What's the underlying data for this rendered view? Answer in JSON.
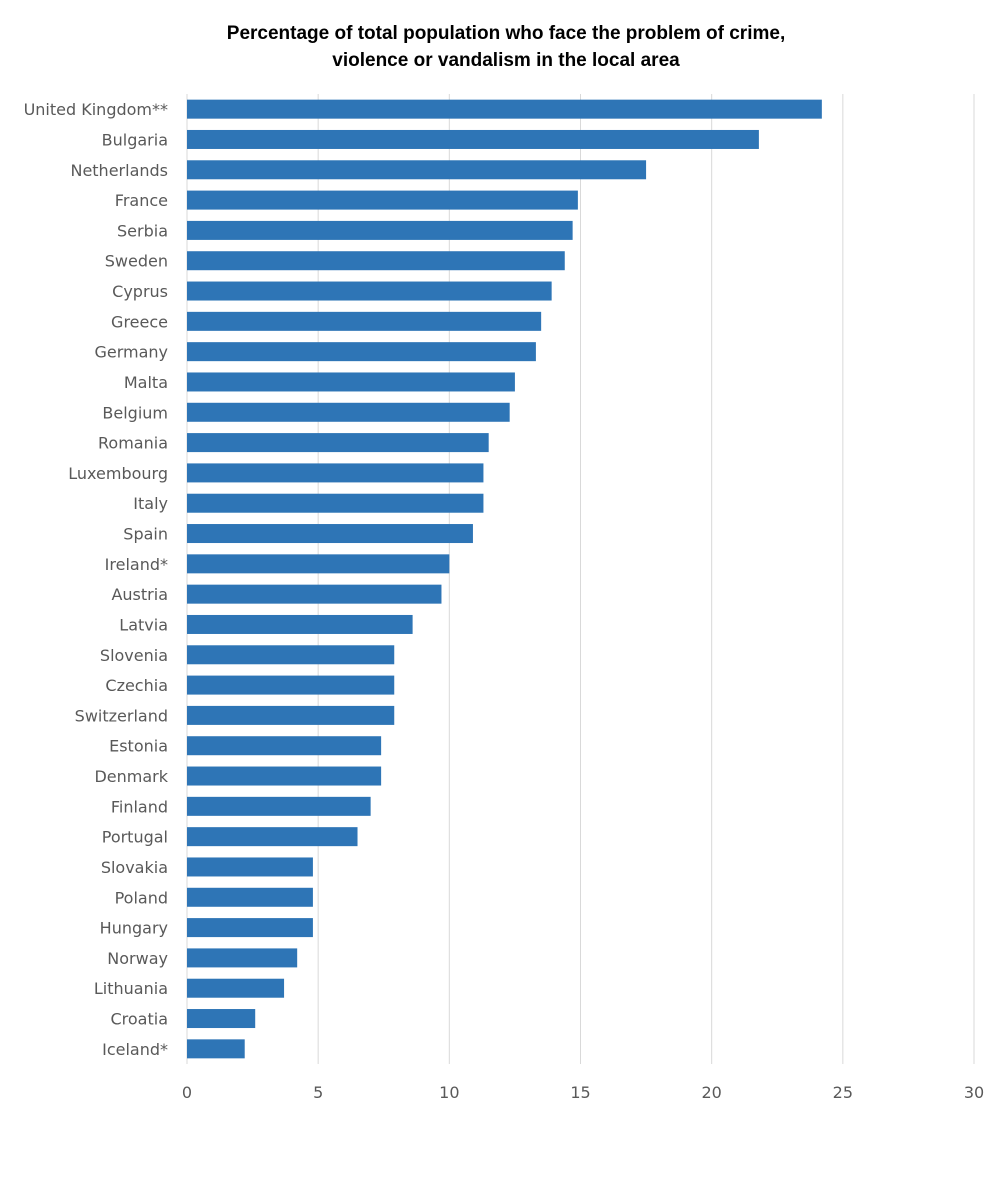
{
  "chart_data": {
    "type": "bar",
    "orientation": "horizontal",
    "title_lines": [
      "Percentage of total population who face the problem of crime,",
      "violence or vandalism in the local area"
    ],
    "categories": [
      "United Kingdom**",
      "Bulgaria",
      "Netherlands",
      "France",
      "Serbia",
      "Sweden",
      "Cyprus",
      "Greece",
      "Germany",
      "Malta",
      "Belgium",
      "Romania",
      "Luxembourg",
      "Italy",
      "Spain",
      "Ireland*",
      "Austria",
      "Latvia",
      "Slovenia",
      "Czechia",
      "Switzerland",
      "Estonia",
      "Denmark",
      "Finland",
      "Portugal",
      "Slovakia",
      "Poland",
      "Hungary",
      "Norway",
      "Lithuania",
      "Croatia",
      "Iceland*"
    ],
    "values": [
      24.2,
      21.8,
      17.5,
      14.9,
      14.7,
      14.4,
      13.9,
      13.5,
      13.3,
      12.5,
      12.3,
      11.5,
      11.3,
      11.3,
      10.9,
      10.0,
      9.7,
      8.6,
      7.9,
      7.9,
      7.9,
      7.4,
      7.4,
      7.0,
      6.5,
      4.8,
      4.8,
      4.8,
      4.2,
      3.7,
      2.6,
      2.2
    ],
    "xlim": [
      0,
      30
    ],
    "xticks": [
      "0",
      "5",
      "10",
      "15",
      "20",
      "25",
      "30"
    ],
    "grid": "vertical",
    "legend": "none",
    "bar_color": "#2E75B6",
    "grid_color": "#D9D9D9"
  }
}
